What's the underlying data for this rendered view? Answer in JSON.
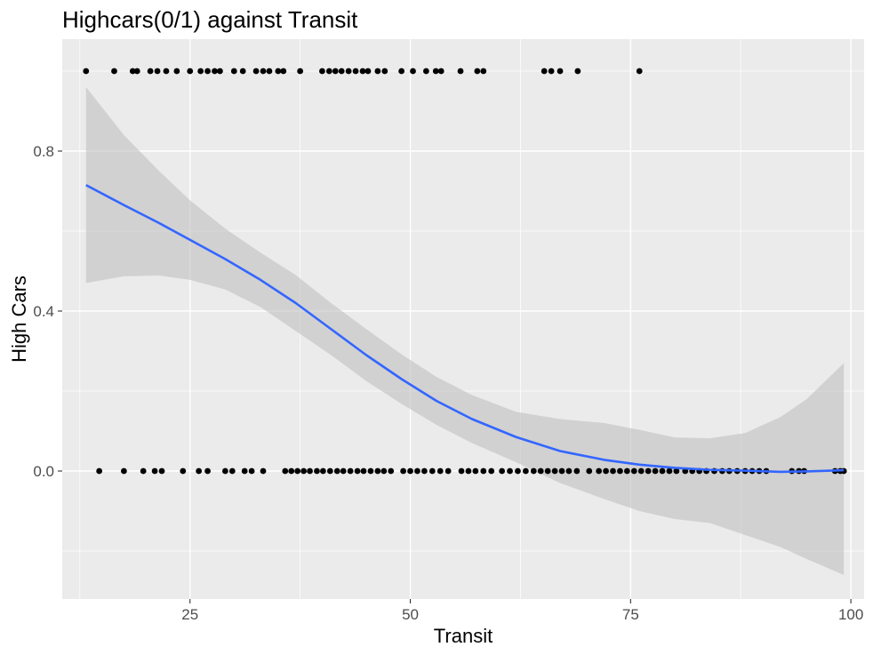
{
  "chart_data": {
    "type": "scatter",
    "title": "Highcars(0/1) against Transit",
    "xlabel": "Transit",
    "ylabel": "High Cars",
    "xlim": [
      10.5,
      101.5
    ],
    "ylim": [
      -0.32,
      1.08
    ],
    "x_ticks": [
      25,
      50,
      75,
      100
    ],
    "x_tick_labels": [
      "25",
      "50",
      "75",
      "100"
    ],
    "y_ticks": [
      0.0,
      0.4,
      0.8
    ],
    "y_tick_labels": [
      "0.0",
      "0.4",
      "0.8"
    ],
    "grid": true,
    "legend": "none",
    "colors": {
      "panel": "#ebebeb",
      "grid_major": "#ffffff",
      "points": "#000000",
      "smooth_line": "#3366ff",
      "ribbon": "#bfbfbf"
    },
    "series": [
      {
        "type": "points",
        "x": [
          13.2,
          16.4,
          18.5,
          19.0,
          20.5,
          21.3,
          22.3,
          23.5,
          25.0,
          26.2,
          27.0,
          27.8,
          28.4,
          30.0,
          31.0,
          32.5,
          33.3,
          34.0,
          35.0,
          35.6,
          37.5,
          40.0,
          40.8,
          41.5,
          42.2,
          43.0,
          43.8,
          44.6,
          45.2,
          46.3,
          47.1,
          49.0,
          50.3,
          51.8,
          52.9,
          53.5,
          55.7,
          57.6,
          58.3,
          65.2,
          66.0,
          67.0,
          69.0,
          76.0,
          14.7,
          17.5,
          19.7,
          21.0,
          21.8,
          24.2,
          26.0,
          27.0,
          29.0,
          29.8,
          31.2,
          32.0,
          33.3,
          35.8,
          36.5,
          37.2,
          37.9,
          38.6,
          39.4,
          40.1,
          40.9,
          41.7,
          42.4,
          43.2,
          44.0,
          44.7,
          45.5,
          46.3,
          47.0,
          47.8,
          49.2,
          50.0,
          50.8,
          51.6,
          52.5,
          53.4,
          54.3,
          55.8,
          56.6,
          57.4,
          58.3,
          59.2,
          60.4,
          61.3,
          62.2,
          63.1,
          64.0,
          64.8,
          65.6,
          66.4,
          67.2,
          68.0,
          68.9,
          70.3,
          71.4,
          72.2,
          73.0,
          73.8,
          74.6,
          75.4,
          76.2,
          77.0,
          77.8,
          78.6,
          79.4,
          80.2,
          81.2,
          82.0,
          82.8,
          83.6,
          84.5,
          85.4,
          86.2,
          87.1,
          88.0,
          88.8,
          89.6,
          90.4,
          93.3,
          94.1,
          94.7,
          98.2,
          98.8,
          99.2
        ],
        "y": [
          1,
          1,
          1,
          1,
          1,
          1,
          1,
          1,
          1,
          1,
          1,
          1,
          1,
          1,
          1,
          1,
          1,
          1,
          1,
          1,
          1,
          1,
          1,
          1,
          1,
          1,
          1,
          1,
          1,
          1,
          1,
          1,
          1,
          1,
          1,
          1,
          1,
          1,
          1,
          1,
          1,
          1,
          1,
          1,
          0,
          0,
          0,
          0,
          0,
          0,
          0,
          0,
          0,
          0,
          0,
          0,
          0,
          0,
          0,
          0,
          0,
          0,
          0,
          0,
          0,
          0,
          0,
          0,
          0,
          0,
          0,
          0,
          0,
          0,
          0,
          0,
          0,
          0,
          0,
          0,
          0,
          0,
          0,
          0,
          0,
          0,
          0,
          0,
          0,
          0,
          0,
          0,
          0,
          0,
          0,
          0,
          0,
          0,
          0,
          0,
          0,
          0,
          0,
          0,
          0,
          0,
          0,
          0,
          0,
          0,
          0,
          0,
          0,
          0,
          0,
          0,
          0,
          0,
          0,
          0,
          0,
          0,
          0,
          0,
          0,
          0,
          0,
          0
        ]
      },
      {
        "type": "smooth",
        "x": [
          13.2,
          17.5,
          21.5,
          25.0,
          29.0,
          33.0,
          37.0,
          41.0,
          45.0,
          49.0,
          53.0,
          57.0,
          62.0,
          67.0,
          72.0,
          76.0,
          80.0,
          84.0,
          88.0,
          92.0,
          95.0,
          99.2
        ],
        "y": [
          0.715,
          0.665,
          0.62,
          0.578,
          0.53,
          0.478,
          0.42,
          0.355,
          0.29,
          0.23,
          0.175,
          0.13,
          0.085,
          0.05,
          0.028,
          0.016,
          0.008,
          0.003,
          0.001,
          -0.002,
          -0.001,
          0.002
        ],
        "ymin": [
          0.47,
          0.487,
          0.489,
          0.478,
          0.454,
          0.41,
          0.35,
          0.29,
          0.225,
          0.168,
          0.115,
          0.07,
          0.022,
          -0.03,
          -0.07,
          -0.1,
          -0.12,
          -0.13,
          -0.16,
          -0.19,
          -0.22,
          -0.26
        ],
        "ymax": [
          0.96,
          0.84,
          0.75,
          0.677,
          0.606,
          0.546,
          0.49,
          0.42,
          0.355,
          0.292,
          0.235,
          0.19,
          0.148,
          0.13,
          0.12,
          0.103,
          0.084,
          0.082,
          0.095,
          0.135,
          0.18,
          0.27
        ]
      }
    ]
  }
}
